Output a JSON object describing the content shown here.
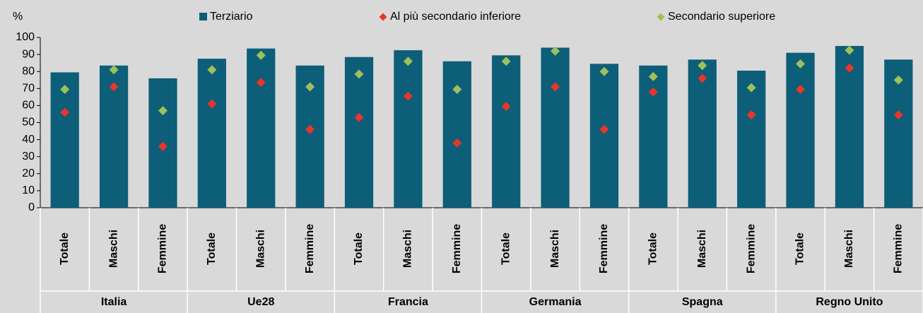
{
  "chart_data": {
    "type": "bar",
    "y_axis_label": "%",
    "categories": [
      "Totale",
      "Maschi",
      "Femmine",
      "Totale",
      "Maschi",
      "Femmine",
      "Totale",
      "Maschi",
      "Femmine",
      "Totale",
      "Maschi",
      "Femmine",
      "Totale",
      "Maschi",
      "Femmine",
      "Totale",
      "Maschi",
      "Femmine"
    ],
    "groups": [
      "Italia",
      "Ue28",
      "Francia",
      "Germania",
      "Spagna",
      "Regno Unito"
    ],
    "series": [
      {
        "name": "Terziario",
        "type": "bar",
        "color": "#0d5e78",
        "values": [
          79.5,
          83.5,
          76,
          87.5,
          93.5,
          83.5,
          88.5,
          92.5,
          86,
          89.5,
          94,
          84.5,
          83.5,
          87,
          80.5,
          91,
          95,
          87
        ]
      },
      {
        "name": "Al più secondario inferiore",
        "type": "scatter",
        "color": "#e8352a",
        "values": [
          56,
          71,
          36,
          61,
          73.5,
          46,
          53,
          65.5,
          38,
          59.5,
          71,
          46,
          68,
          76,
          54.5,
          69.5,
          82,
          54.5
        ]
      },
      {
        "name": "Secondario superiore",
        "type": "scatter",
        "color": "#9dc15a",
        "values": [
          69.5,
          81,
          57,
          81,
          89.5,
          71,
          78.5,
          86,
          69.5,
          86,
          92,
          80,
          77,
          83.5,
          70.5,
          84.5,
          92.5,
          75
        ]
      }
    ],
    "ylim": [
      0,
      100
    ],
    "yticks": [
      0,
      10,
      20,
      30,
      40,
      50,
      60,
      70,
      80,
      90,
      100
    ]
  }
}
